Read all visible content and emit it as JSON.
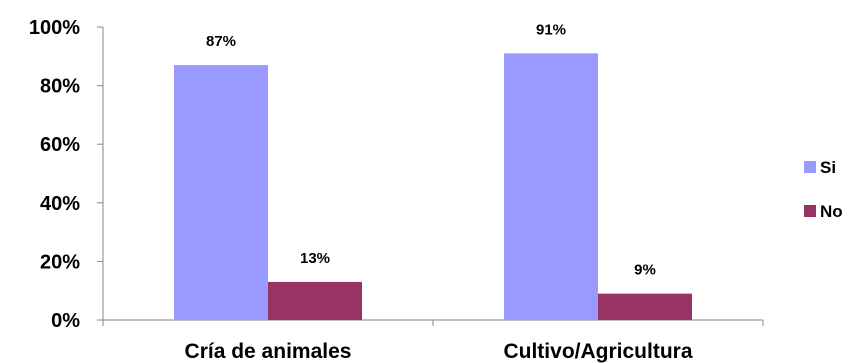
{
  "chart_data": {
    "type": "bar",
    "categories": [
      "Cría de animales",
      "Cultivo/Agricultura"
    ],
    "series": [
      {
        "name": "Si",
        "values": [
          87,
          91
        ],
        "color": "#9999FF",
        "labels": [
          "87%",
          "91%"
        ]
      },
      {
        "name": "No",
        "values": [
          13,
          9
        ],
        "color": "#993366",
        "labels": [
          "13%",
          "9%"
        ]
      }
    ],
    "ylim": [
      0,
      100
    ],
    "yticks": [
      0,
      20,
      40,
      60,
      80,
      100
    ],
    "ytick_labels": [
      "0%",
      "20%",
      "40%",
      "60%",
      "80%",
      "100%"
    ],
    "legend_position": "right",
    "grid": false
  }
}
